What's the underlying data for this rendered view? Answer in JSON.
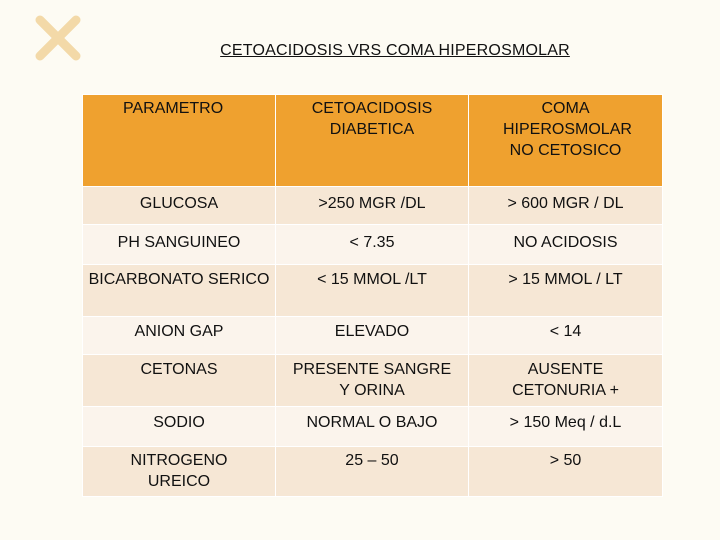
{
  "slide": {
    "title": "CETOACIDOSIS VRS COMA HIPEROSMOLAR",
    "accent_color": "#efa12f",
    "row_color_dark": "#f6e7d5",
    "row_color_light": "#fbf4ec",
    "decoration_icon": "x-mark-icon"
  },
  "table": {
    "headers": [
      "PARAMETRO",
      "CETOACIDOSIS DIABETICA",
      "COMA HIPEROSMOLAR NO CETOSICO"
    ],
    "rows": [
      [
        "GLUCOSA",
        ">250 MGR /DL",
        "> 600 MGR / DL"
      ],
      [
        "PH SANGUINEO",
        "< 7.35",
        "NO ACIDOSIS"
      ],
      [
        "BICARBONATO SERICO",
        "< 15 MMOL /LT",
        "> 15 MMOL / LT"
      ],
      [
        "ANION GAP",
        "ELEVADO",
        "< 14"
      ],
      [
        "CETONAS",
        "PRESENTE SANGRE Y ORINA",
        "AUSENTE CETONURIA +"
      ],
      [
        "SODIO",
        "NORMAL O BAJO",
        "> 150 Meq / d.L"
      ],
      [
        "NITROGENO UREICO",
        "25 – 50",
        "> 50"
      ]
    ]
  }
}
